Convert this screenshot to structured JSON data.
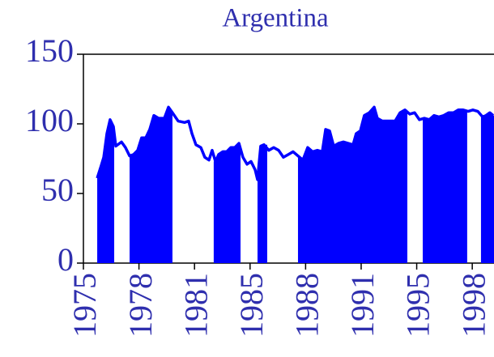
{
  "chart_data": {
    "type": "line",
    "title": "Argentina",
    "color": "#0000ff",
    "xlim": [
      1975,
      2000.87
    ],
    "ylim": [
      0,
      150
    ],
    "yticks": [
      0,
      50,
      100,
      150
    ],
    "xticks": [
      {
        "value": 1975,
        "label": "1975"
      },
      {
        "value": 1978.5,
        "label": "1978"
      },
      {
        "value": 1982,
        "label": "1981"
      },
      {
        "value": 1985.5,
        "label": "1985"
      },
      {
        "value": 1989,
        "label": "1988"
      },
      {
        "value": 1992.5,
        "label": "1991"
      },
      {
        "value": 1996,
        "label": "1995"
      },
      {
        "value": 1999.5,
        "label": "1998"
      }
    ],
    "shaded_periods": [
      [
        1975.87,
        1976.94
      ],
      [
        1977.91,
        1980.61
      ],
      [
        1983.21,
        1984.9
      ],
      [
        1985.97,
        1986.58
      ],
      [
        1988.52,
        1995.41
      ],
      [
        1996.38,
        1999.18
      ],
      [
        2000.05,
        2000.87
      ]
    ],
    "x": [
      1975.87,
      1976.12,
      1976.28,
      1976.48,
      1976.68,
      1976.89,
      1977.04,
      1977.4,
      1977.65,
      1977.91,
      1978.16,
      1978.42,
      1978.67,
      1978.93,
      1979.18,
      1979.44,
      1979.74,
      1980.1,
      1980.36,
      1980.61,
      1980.97,
      1981.38,
      1981.63,
      1981.84,
      1982.09,
      1982.4,
      1982.65,
      1982.91,
      1983.11,
      1983.32,
      1983.52,
      1983.78,
      1984.03,
      1984.29,
      1984.54,
      1984.8,
      1985.05,
      1985.31,
      1985.56,
      1985.82,
      1985.97,
      1986.17,
      1986.38,
      1986.68,
      1986.99,
      1987.3,
      1987.6,
      1987.91,
      1988.21,
      1988.52,
      1988.83,
      1989.13,
      1989.44,
      1989.74,
      1990.05,
      1990.26,
      1990.51,
      1990.77,
      1991.07,
      1991.38,
      1991.68,
      1991.99,
      1992.19,
      1992.45,
      1992.7,
      1993.01,
      1993.32,
      1993.52,
      1993.83,
      1994.24,
      1994.64,
      1994.95,
      1995.26,
      1995.56,
      1995.87,
      1996.17,
      1996.48,
      1996.79,
      1997.09,
      1997.4,
      1997.7,
      1998.01,
      1998.32,
      1998.62,
      1998.93,
      1999.24,
      1999.54,
      1999.85,
      2000.15,
      2000.36,
      2000.61,
      2000.82
    ],
    "values": [
      61,
      70,
      76,
      93,
      103,
      98,
      84,
      87,
      83,
      77,
      78,
      81,
      90,
      90,
      96,
      106,
      104,
      104,
      112,
      108,
      102,
      101,
      102,
      93,
      85,
      83,
      76,
      74,
      81,
      73,
      78,
      80,
      80,
      83,
      83,
      86,
      76,
      71,
      73,
      67,
      60,
      84,
      85,
      81,
      83,
      81,
      76,
      78,
      80,
      77,
      74,
      83,
      80,
      81,
      80,
      96,
      95,
      84,
      86,
      87,
      86,
      85,
      93,
      95,
      106,
      108,
      112,
      104,
      102,
      102,
      102,
      108,
      110,
      107,
      108,
      103,
      104,
      103,
      106,
      105,
      106,
      108,
      108,
      110,
      110,
      109,
      110,
      109,
      105,
      106,
      108,
      106
    ]
  }
}
